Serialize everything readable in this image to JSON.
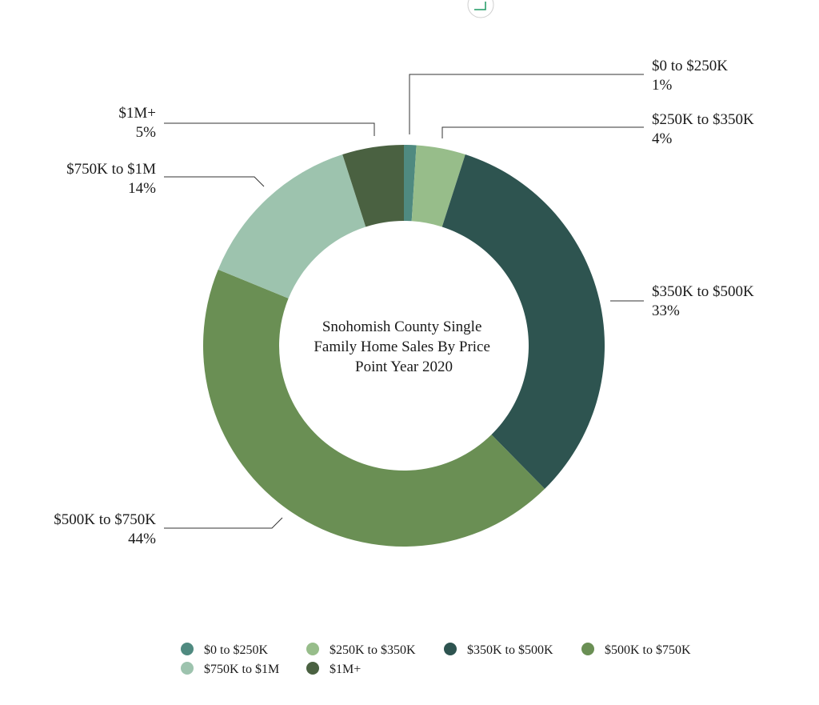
{
  "chart_data": {
    "type": "donut",
    "title_lines": [
      "Snohomish County Single",
      "Family Home Sales By Price",
      "Point Year 2020"
    ],
    "series": [
      {
        "name": "$0 to $250K",
        "value": 1,
        "label": "1%",
        "color": "#4f8a80"
      },
      {
        "name": "$250K to $350K",
        "value": 4,
        "label": "4%",
        "color": "#97bd8a"
      },
      {
        "name": "$350K to $500K",
        "value": 33,
        "label": "33%",
        "color": "#2e5450"
      },
      {
        "name": "$500K to $750K",
        "value": 44,
        "label": "44%",
        "color": "#6a8f54"
      },
      {
        "name": "$750K to $1M",
        "value": 14,
        "label": "14%",
        "color": "#9dc3ae"
      },
      {
        "name": "$1M+",
        "value": 5,
        "label": "5%",
        "color": "#4a6141"
      }
    ],
    "legend_position": "bottom"
  }
}
